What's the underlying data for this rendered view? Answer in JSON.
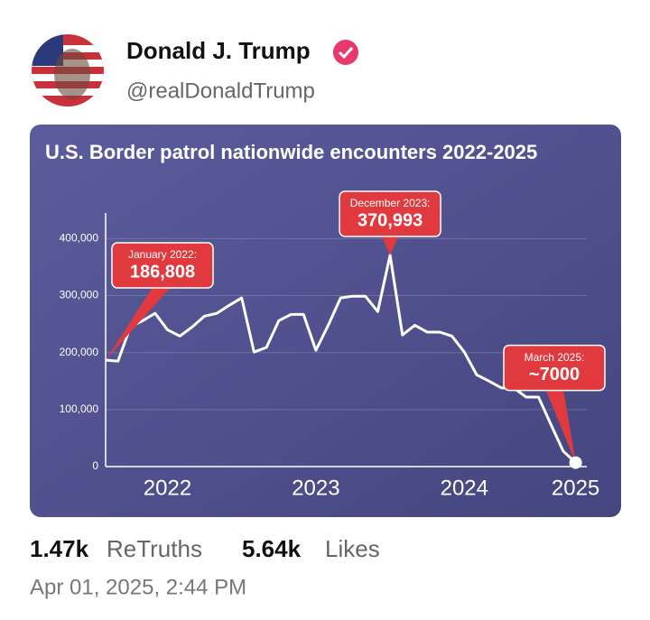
{
  "post": {
    "author_name": "Donald J. Trump",
    "handle": "@realDonaldTrump",
    "retruths_count": "1.47k",
    "retruths_label": "ReTruths",
    "likes_count": "5.64k",
    "likes_label": "Likes",
    "timestamp": "Apr 01, 2025, 2:44 PM"
  },
  "chart_data": {
    "type": "line",
    "title": "U.S. Border patrol nationwide encounters 2022-2025",
    "categories": [
      null,
      null,
      null,
      null,
      null,
      "2022",
      null,
      null,
      null,
      null,
      null,
      null,
      null,
      null,
      null,
      null,
      null,
      "2023",
      null,
      null,
      null,
      null,
      null,
      null,
      null,
      null,
      null,
      null,
      null,
      "2024",
      null,
      null,
      null,
      null,
      null,
      null,
      null,
      null,
      "2025"
    ],
    "series": [
      {
        "color": "#ffffff",
        "values": [
          186808,
          185000,
          245000,
          256000,
          269000,
          240000,
          229000,
          245000,
          264000,
          269000,
          283000,
          296000,
          201000,
          209000,
          256000,
          267000,
          267000,
          204000,
          248000,
          296000,
          299000,
          299000,
          272000,
          370993,
          231000,
          248000,
          236000,
          236000,
          229000,
          201000,
          161000,
          150000,
          138000,
          138000,
          122000,
          122000,
          74000,
          27000,
          7000
        ],
        "annotation_titles": [
          "January 2022:",
          null,
          null,
          null,
          null,
          null,
          null,
          null,
          null,
          null,
          null,
          null,
          null,
          null,
          null,
          null,
          null,
          null,
          null,
          null,
          null,
          null,
          null,
          "December 2023:",
          null,
          null,
          null,
          null,
          null,
          null,
          null,
          null,
          null,
          null,
          null,
          null,
          null,
          null,
          "March 2025:"
        ],
        "value_labels": [
          "186,808",
          null,
          null,
          null,
          null,
          null,
          null,
          null,
          null,
          null,
          null,
          null,
          null,
          null,
          null,
          null,
          null,
          null,
          null,
          null,
          null,
          null,
          null,
          "370,993",
          null,
          null,
          null,
          null,
          null,
          null,
          null,
          null,
          null,
          null,
          null,
          null,
          null,
          null,
          "~7000"
        ]
      }
    ],
    "annotation_color": "#e03a3e",
    "ylim": [
      0,
      445000
    ],
    "yticks": [
      0,
      {
        "value": 100000,
        "label": "100,000"
      },
      {
        "value": 200000,
        "label": "200,000"
      },
      {
        "value": 300000,
        "label": "300,000"
      },
      {
        "value": 400000,
        "label": "400,000"
      }
    ],
    "grid": true
  }
}
